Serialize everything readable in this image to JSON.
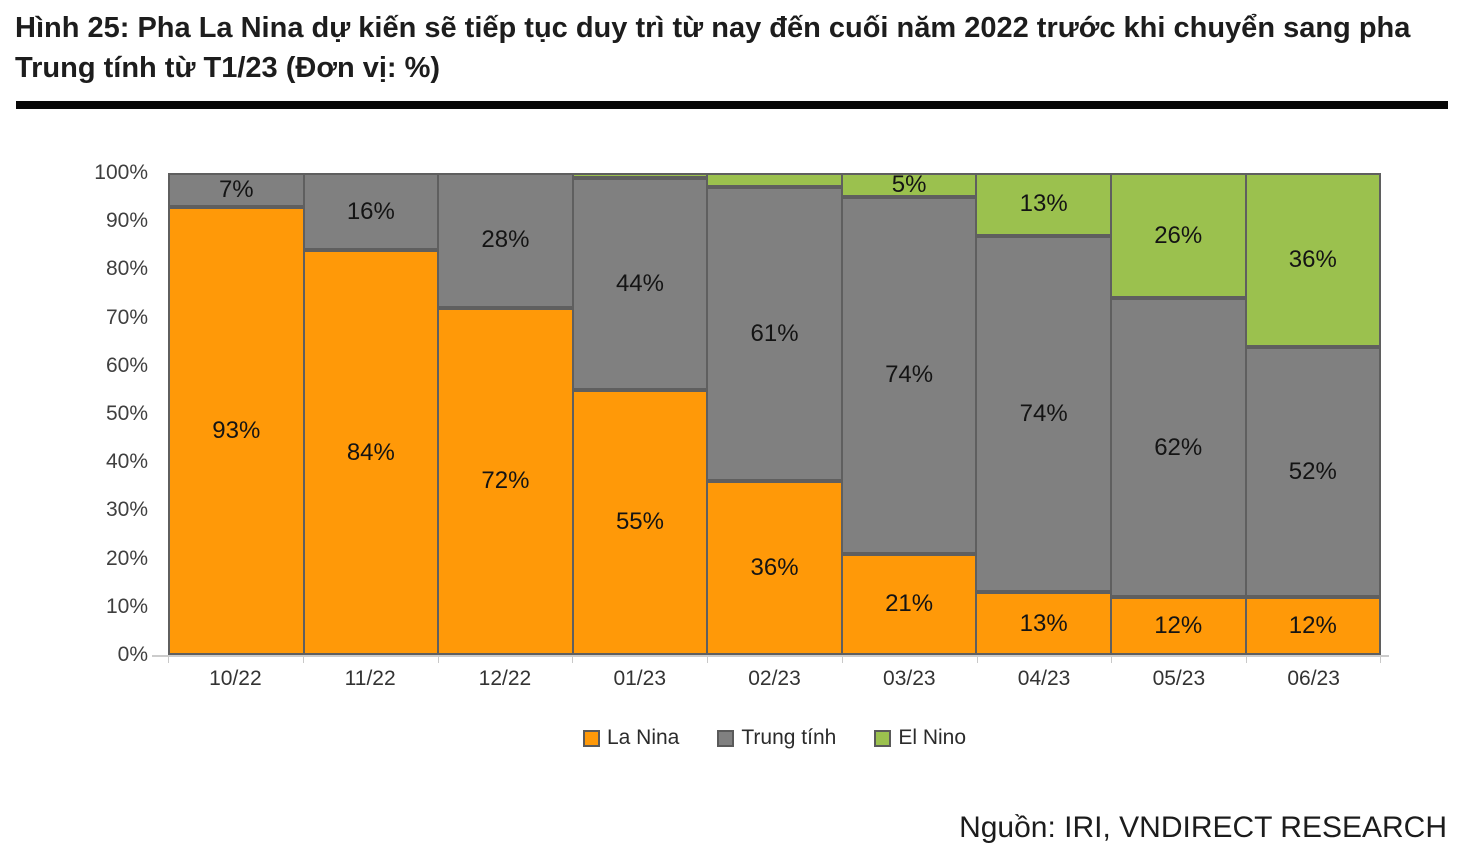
{
  "header": {
    "title": "Hình 25: Pha La Nina dự kiến sẽ tiếp tục duy trì từ nay đến cuối năm 2022 trước khi chuyển sang pha Trung tính từ T1/23 (Đơn vị: %)"
  },
  "chart_data": {
    "type": "bar",
    "stacked": true,
    "unit": "%",
    "title": "",
    "xlabel": "",
    "ylabel": "",
    "grid": false,
    "legend_position": "bottom",
    "categories": [
      "10/22",
      "11/22",
      "12/22",
      "01/23",
      "02/23",
      "03/23",
      "04/23",
      "05/23",
      "06/23"
    ],
    "series": [
      {
        "name": "La Nina",
        "color": "#FF9908",
        "values": [
          93,
          84,
          72,
          55,
          36,
          21,
          13,
          12,
          12
        ]
      },
      {
        "name": "Trung tính",
        "color": "#808080",
        "values": [
          7,
          16,
          28,
          44,
          61,
          74,
          74,
          62,
          52
        ]
      },
      {
        "name": "El Nino",
        "color": "#9BC14E",
        "values": [
          0,
          0,
          0,
          1,
          3,
          5,
          13,
          26,
          36
        ]
      }
    ],
    "data_label_suffix": "%",
    "min_value_for_label": 5,
    "bar_border_color": "#5f5f5f",
    "y_axis": {
      "min": 0,
      "max": 100,
      "tick_labels": [
        "100%",
        "90%",
        "80%",
        "70%",
        "60%",
        "50%",
        "40%",
        "30%",
        "20%",
        "10%",
        "0%"
      ]
    }
  },
  "source": "Nguồn: IRI, VNDIRECT RESEARCH"
}
